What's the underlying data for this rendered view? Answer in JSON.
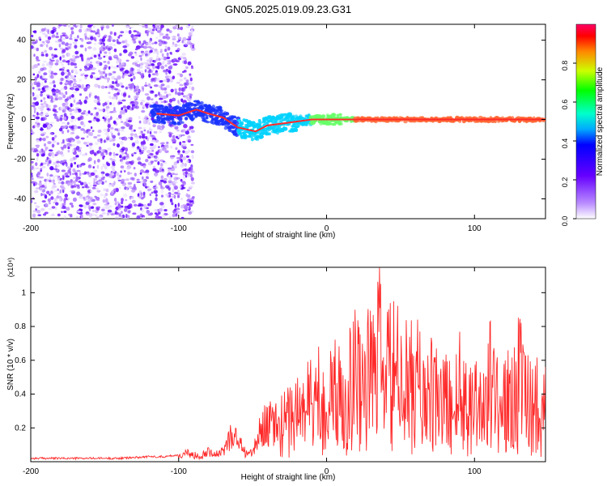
{
  "page": {
    "title": "GN05.2025.019.09.23.G31"
  },
  "chart_data": [
    {
      "type": "heatmap",
      "xlabel": "Height of straight line (km)",
      "ylabel": "Frequency (Hz)",
      "xlim": [
        -200,
        148
      ],
      "ylim": [
        -50,
        48
      ],
      "xticks": [
        -200,
        -100,
        0,
        100
      ],
      "yticks": [
        -40,
        -20,
        0,
        20,
        40
      ],
      "colorbar": {
        "label": "Normalized spectral amplitude",
        "range": [
          0,
          1
        ],
        "ticks": [
          0.0,
          0.2,
          0.4,
          0.6,
          0.8
        ]
      },
      "colors": {
        "low": "#7a00ff",
        "mid": "#00ccff",
        "high": "#ff2a2a"
      },
      "ridge": [
        {
          "x": -115,
          "y": 3
        },
        {
          "x": -100,
          "y": 2
        },
        {
          "x": -88,
          "y": 5
        },
        {
          "x": -80,
          "y": 3
        },
        {
          "x": -70,
          "y": 1
        },
        {
          "x": -60,
          "y": -4
        },
        {
          "x": -48,
          "y": -6
        },
        {
          "x": -40,
          "y": -3
        },
        {
          "x": -30,
          "y": -2
        },
        {
          "x": -20,
          "y": -1
        },
        {
          "x": -10,
          "y": 0
        },
        {
          "x": 0,
          "y": 0
        },
        {
          "x": 10,
          "y": 0
        },
        {
          "x": 20,
          "y": 0
        },
        {
          "x": 40,
          "y": 0
        },
        {
          "x": 60,
          "y": 0
        },
        {
          "x": 80,
          "y": 0
        },
        {
          "x": 100,
          "y": 0
        },
        {
          "x": 120,
          "y": 0
        },
        {
          "x": 148,
          "y": 0
        }
      ]
    },
    {
      "type": "line",
      "xlabel": "Height of straight line (km)",
      "ylabel": "SNR (10 * v/v)",
      "yunit": "(x10⁴)",
      "xlim": [
        -200,
        148
      ],
      "ylim": [
        0,
        1.15
      ],
      "xticks": [
        -200,
        -100,
        0,
        100
      ],
      "yticks": [
        0.2,
        0.4,
        0.6,
        0.8,
        1.0
      ],
      "series": [
        {
          "color": "#ff2a2a",
          "x": [
            -200,
            -180,
            -160,
            -140,
            -120,
            -110,
            -100,
            -95,
            -90,
            -85,
            -80,
            -75,
            -70,
            -65,
            -60,
            -55,
            -50,
            -45,
            -40,
            -35,
            -30,
            -25,
            -20,
            -15,
            -10,
            -5,
            0,
            5,
            10,
            15,
            20,
            25,
            30,
            35,
            40,
            45,
            50,
            55,
            60,
            65,
            70,
            75,
            80,
            85,
            90,
            95,
            100,
            105,
            110,
            115,
            120,
            125,
            130,
            135,
            140,
            145,
            148
          ],
          "y": [
            0.02,
            0.02,
            0.02,
            0.02,
            0.03,
            0.03,
            0.04,
            0.06,
            0.05,
            0.04,
            0.09,
            0.05,
            0.07,
            0.2,
            0.16,
            0.07,
            0.06,
            0.22,
            0.32,
            0.38,
            0.36,
            0.46,
            0.5,
            0.56,
            0.62,
            0.66,
            0.52,
            0.72,
            0.6,
            0.78,
            0.88,
            0.84,
            0.86,
            1.12,
            0.82,
            0.9,
            0.8,
            0.75,
            0.82,
            0.7,
            0.68,
            0.6,
            0.62,
            0.55,
            0.72,
            0.6,
            0.66,
            0.58,
            0.78,
            0.7,
            0.58,
            0.62,
            0.8,
            0.7,
            0.62,
            0.55,
            0.56
          ]
        }
      ]
    }
  ]
}
